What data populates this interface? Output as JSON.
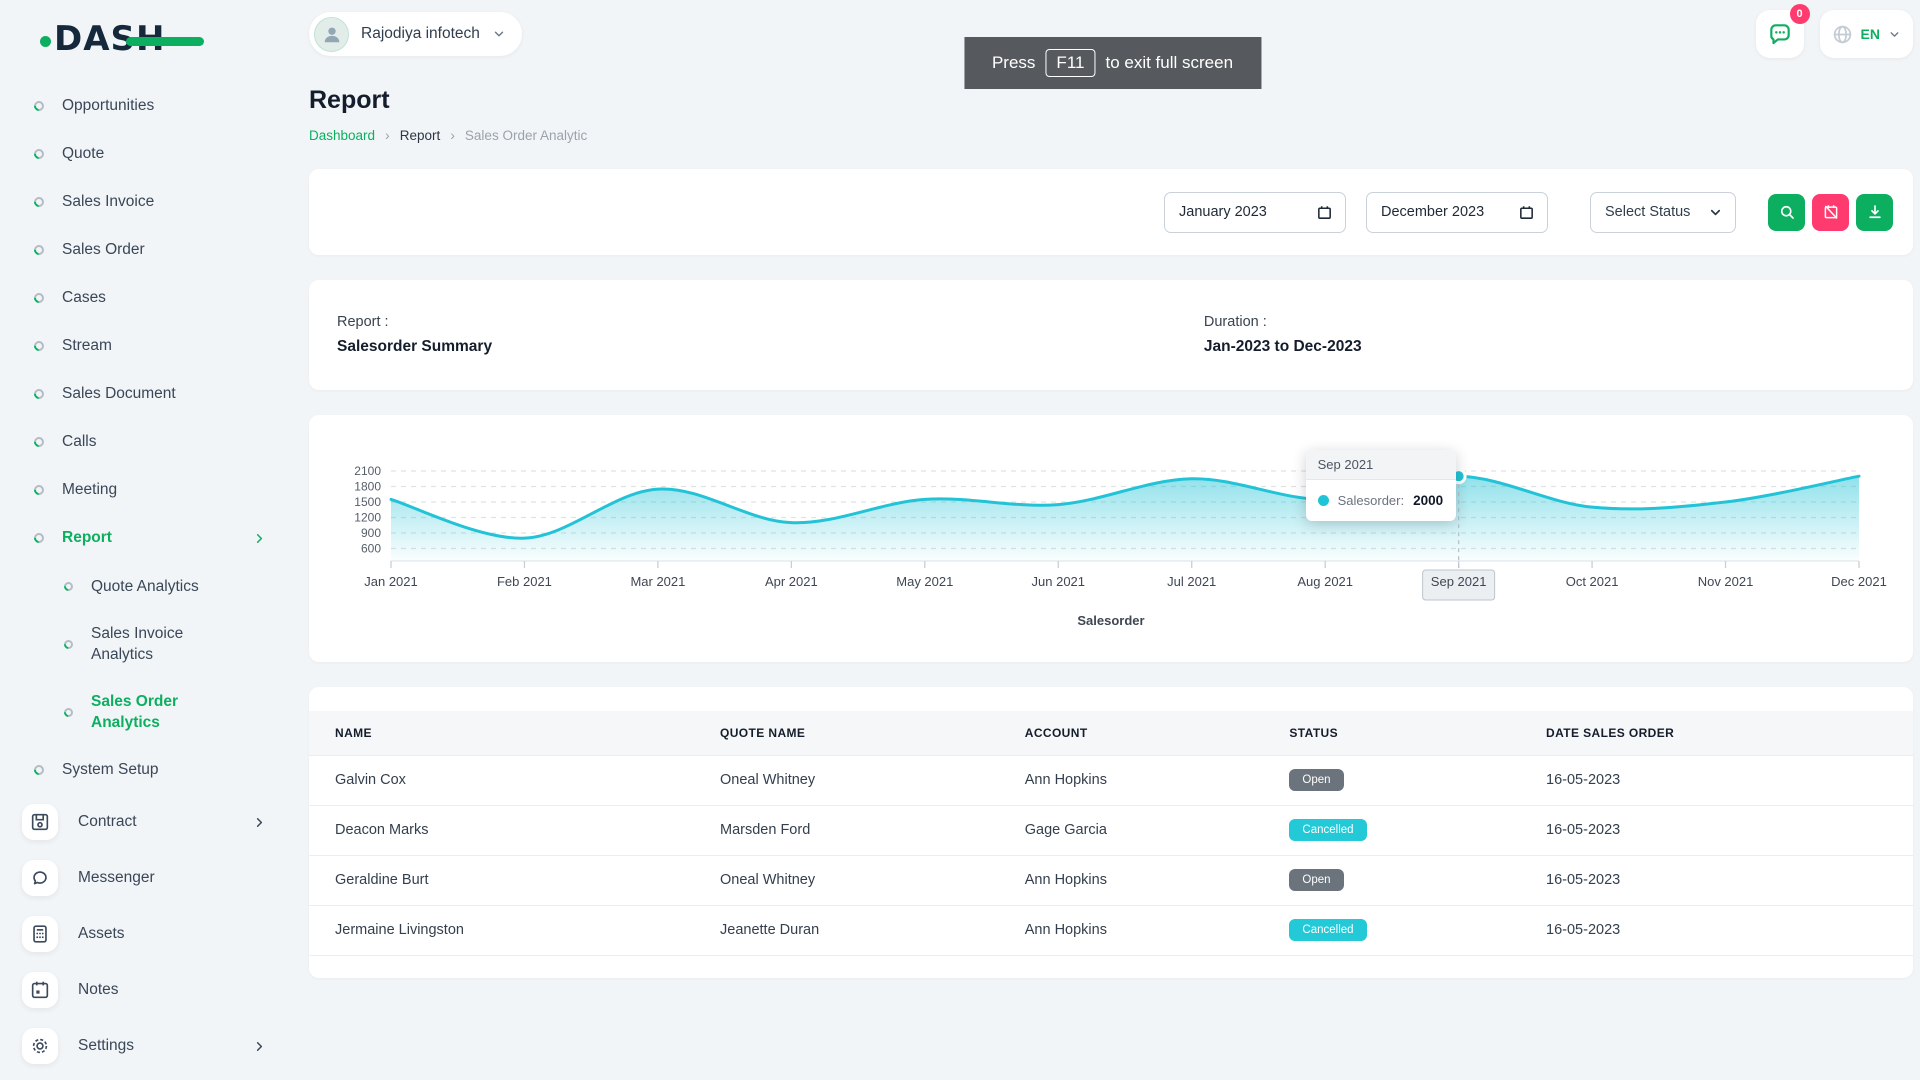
{
  "brand": {
    "name": "DASH"
  },
  "topbar": {
    "workspace": "Rajodiya infotech",
    "notifications_badge": "0",
    "language": "EN"
  },
  "toast": {
    "prefix": "Press",
    "key": "F11",
    "suffix": "to exit full screen"
  },
  "sidebar": {
    "items": [
      {
        "label": "Opportunities"
      },
      {
        "label": "Quote"
      },
      {
        "label": "Sales Invoice"
      },
      {
        "label": "Sales Order"
      },
      {
        "label": "Cases"
      },
      {
        "label": "Stream"
      },
      {
        "label": "Sales Document"
      },
      {
        "label": "Calls"
      },
      {
        "label": "Meeting"
      },
      {
        "label": "Report",
        "active": true,
        "chevron": true
      },
      {
        "label": "Quote Analytics",
        "sub": true
      },
      {
        "label": "Sales Invoice Analytics",
        "sub": true,
        "twoLine": true
      },
      {
        "label": "Sales Order Analytics",
        "sub": true,
        "twoLine": true,
        "active": true
      },
      {
        "label": "System Setup"
      }
    ],
    "tiles": [
      {
        "label": "Contract",
        "icon": "floppy-disk-icon",
        "chevron": true
      },
      {
        "label": "Messenger",
        "icon": "chat-bubble-icon"
      },
      {
        "label": "Assets",
        "icon": "calculator-icon"
      },
      {
        "label": "Notes",
        "icon": "calendar-icon"
      },
      {
        "label": "Settings",
        "icon": "gear-icon",
        "chevron": true
      }
    ]
  },
  "page": {
    "title": "Report",
    "breadcrumb": [
      "Dashboard",
      "Report",
      "Sales Order Analytic"
    ]
  },
  "filters": {
    "from_month": "January 2023",
    "to_month": "December 2023",
    "status_placeholder": "Select Status"
  },
  "summary": {
    "report_label": "Report :",
    "report_value": "Salesorder Summary",
    "duration_label": "Duration :",
    "duration_value": "Jan-2023 to Dec-2023"
  },
  "chart_data": {
    "type": "area",
    "title": "",
    "xlabel": "Salesorder",
    "ylabel": "",
    "categories": [
      "Jan 2021",
      "Feb 2021",
      "Mar 2021",
      "Apr 2021",
      "May 2021",
      "Jun 2021",
      "Jul 2021",
      "Aug 2021",
      "Sep 2021",
      "Oct 2021",
      "Nov 2021",
      "Dec 2021"
    ],
    "series": [
      {
        "name": "Salesorder",
        "values": [
          1550,
          800,
          1750,
          1100,
          1550,
          1450,
          1950,
          1550,
          2000,
          1400,
          1500,
          2000
        ]
      }
    ],
    "yticks": [
      600,
      900,
      1200,
      1500,
      1800,
      2100
    ],
    "ylim": [
      600,
      2100
    ],
    "grid": "dashed-horizontal",
    "legend_position": "bottom",
    "highlight_index": 8,
    "tooltip": {
      "title": "Sep 2021",
      "series_label": "Salesorder:",
      "value": "2000"
    }
  },
  "table": {
    "columns": [
      "NAME",
      "QUOTE NAME",
      "ACCOUNT",
      "STATUS",
      "DATE SALES ORDER"
    ],
    "rows": [
      {
        "name": "Galvin Cox",
        "quote_name": "Oneal Whitney",
        "account": "Ann Hopkins",
        "status": "Open",
        "date": "16-05-2023"
      },
      {
        "name": "Deacon Marks",
        "quote_name": "Marsden Ford",
        "account": "Gage Garcia",
        "status": "Cancelled",
        "date": "16-05-2023"
      },
      {
        "name": "Geraldine Burt",
        "quote_name": "Oneal Whitney",
        "account": "Ann Hopkins",
        "status": "Open",
        "date": "16-05-2023"
      },
      {
        "name": "Jermaine Livingston",
        "quote_name": "Jeanette Duran",
        "account": "Ann Hopkins",
        "status": "Cancelled",
        "date": "16-05-2023"
      }
    ]
  },
  "colors": {
    "primary_green": "#0caf60",
    "pink": "#ff3a6e",
    "chart_cyan": "#22c3d6",
    "dark_navy": "#16283c",
    "status": {
      "Open": "#6b747c",
      "Cancelled": "#23c9d6"
    }
  }
}
